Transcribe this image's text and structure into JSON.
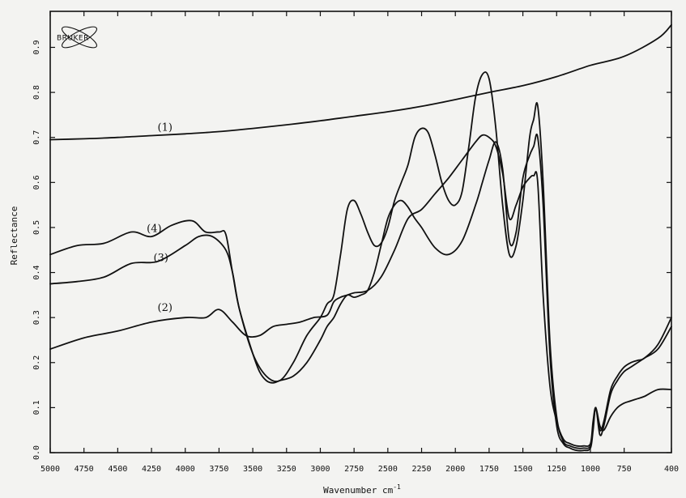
{
  "chart_data": {
    "type": "line",
    "title": "",
    "xlabel": "Wavenumber cm",
    "xlabel_superscript": "-1",
    "ylabel": "Reflectance",
    "xlim": [
      5000,
      400
    ],
    "ylim": [
      0.0,
      0.98
    ],
    "x_reversed": true,
    "grid": false,
    "logo": "BRUKER",
    "x_ticks": [
      "5000",
      "4750",
      "4500",
      "4250",
      "4000",
      "3750",
      "3500",
      "3250",
      "3000",
      "2750",
      "2500",
      "2250",
      "2000",
      "1750",
      "1500",
      "1250",
      "1000",
      "750",
      "400"
    ],
    "x_tick_values": [
      5000,
      4750,
      4500,
      4250,
      4000,
      3750,
      3500,
      3250,
      3000,
      2750,
      2500,
      2250,
      2000,
      1750,
      1500,
      1250,
      1000,
      750,
      400
    ],
    "y_ticks": [
      "0.0",
      "0.1",
      "0.2",
      "0.3",
      "0.4",
      "0.5",
      "0.6",
      "0.7",
      "0.8",
      "0.9"
    ],
    "y_tick_values": [
      0.0,
      0.1,
      0.2,
      0.3,
      0.4,
      0.5,
      0.6,
      0.7,
      0.8,
      0.9
    ],
    "series": [
      {
        "label": "(1)",
        "label_at": [
          4150,
          0.715
        ],
        "x": [
          5000,
          4750,
          4500,
          4250,
          4000,
          3750,
          3500,
          3250,
          3000,
          2750,
          2500,
          2250,
          2000,
          1750,
          1500,
          1250,
          1000,
          750,
          500,
          400
        ],
        "y": [
          0.695,
          0.697,
          0.7,
          0.704,
          0.708,
          0.713,
          0.72,
          0.728,
          0.737,
          0.747,
          0.757,
          0.769,
          0.784,
          0.8,
          0.815,
          0.835,
          0.86,
          0.88,
          0.92,
          0.95
        ]
      },
      {
        "label": "(2)",
        "label_at": [
          4150,
          0.315
        ],
        "x": [
          5000,
          4750,
          4500,
          4250,
          4000,
          3850,
          3750,
          3650,
          3550,
          3450,
          3350,
          3250,
          3150,
          3050,
          2950,
          2900,
          2850,
          2800,
          2750,
          2650,
          2550,
          2450,
          2350,
          2250,
          2150,
          2050,
          1950,
          1850,
          1800,
          1750,
          1700,
          1650,
          1600,
          1550,
          1500,
          1450,
          1420,
          1390,
          1350,
          1300,
          1250,
          1200,
          1150,
          1100,
          1050,
          1000,
          980,
          960,
          930,
          900,
          850,
          800,
          750,
          700,
          650,
          600,
          500,
          400
        ],
        "y": [
          0.23,
          0.255,
          0.27,
          0.29,
          0.3,
          0.3,
          0.318,
          0.29,
          0.26,
          0.26,
          0.28,
          0.285,
          0.29,
          0.3,
          0.305,
          0.335,
          0.345,
          0.35,
          0.355,
          0.36,
          0.39,
          0.45,
          0.52,
          0.54,
          0.575,
          0.61,
          0.65,
          0.69,
          0.705,
          0.7,
          0.68,
          0.62,
          0.52,
          0.55,
          0.59,
          0.61,
          0.615,
          0.6,
          0.35,
          0.15,
          0.07,
          0.03,
          0.02,
          0.015,
          0.015,
          0.02,
          0.07,
          0.1,
          0.06,
          0.05,
          0.08,
          0.1,
          0.11,
          0.115,
          0.12,
          0.125,
          0.14,
          0.14
        ]
      },
      {
        "label": "(3)",
        "label_at": [
          4180,
          0.425
        ],
        "x": [
          5000,
          4800,
          4600,
          4400,
          4200,
          4000,
          3900,
          3800,
          3700,
          3650,
          3600,
          3500,
          3450,
          3400,
          3350,
          3300,
          3200,
          3100,
          3000,
          2950,
          2900,
          2850,
          2800,
          2750,
          2700,
          2650,
          2600,
          2550,
          2500,
          2450,
          2400,
          2350,
          2300,
          2250,
          2150,
          2050,
          1950,
          1850,
          1800,
          1750,
          1700,
          1650,
          1600,
          1550,
          1500,
          1450,
          1420,
          1390,
          1350,
          1300,
          1250,
          1200,
          1150,
          1100,
          1050,
          1000,
          980,
          960,
          930,
          900,
          850,
          800,
          750,
          700,
          650,
          600,
          500,
          400
        ],
        "y": [
          0.375,
          0.38,
          0.39,
          0.42,
          0.425,
          0.46,
          0.48,
          0.48,
          0.45,
          0.4,
          0.32,
          0.22,
          0.18,
          0.16,
          0.155,
          0.16,
          0.17,
          0.2,
          0.25,
          0.28,
          0.3,
          0.33,
          0.35,
          0.345,
          0.35,
          0.36,
          0.4,
          0.46,
          0.52,
          0.55,
          0.56,
          0.545,
          0.52,
          0.5,
          0.455,
          0.44,
          0.47,
          0.55,
          0.6,
          0.65,
          0.69,
          0.63,
          0.47,
          0.49,
          0.61,
          0.66,
          0.68,
          0.7,
          0.55,
          0.22,
          0.06,
          0.02,
          0.01,
          0.005,
          0.005,
          0.01,
          0.05,
          0.1,
          0.04,
          0.06,
          0.13,
          0.16,
          0.18,
          0.19,
          0.2,
          0.21,
          0.23,
          0.28
        ]
      },
      {
        "label": "(4)",
        "label_at": [
          4230,
          0.49
        ],
        "x": [
          5000,
          4800,
          4600,
          4400,
          4250,
          4100,
          3950,
          3850,
          3750,
          3700,
          3650,
          3600,
          3500,
          3400,
          3300,
          3200,
          3100,
          3000,
          2950,
          2900,
          2850,
          2800,
          2750,
          2700,
          2650,
          2600,
          2550,
          2500,
          2450,
          2400,
          2350,
          2300,
          2250,
          2200,
          2150,
          2100,
          2050,
          2000,
          1950,
          1900,
          1850,
          1800,
          1750,
          1700,
          1650,
          1600,
          1550,
          1500,
          1450,
          1420,
          1390,
          1350,
          1300,
          1250,
          1200,
          1150,
          1100,
          1050,
          1000,
          980,
          960,
          930,
          900,
          850,
          800,
          750,
          700,
          650,
          600,
          500,
          400
        ],
        "y": [
          0.44,
          0.46,
          0.465,
          0.49,
          0.48,
          0.505,
          0.515,
          0.49,
          0.49,
          0.485,
          0.4,
          0.32,
          0.22,
          0.17,
          0.16,
          0.2,
          0.26,
          0.3,
          0.33,
          0.35,
          0.44,
          0.54,
          0.56,
          0.53,
          0.49,
          0.46,
          0.465,
          0.5,
          0.56,
          0.6,
          0.64,
          0.7,
          0.72,
          0.71,
          0.66,
          0.6,
          0.56,
          0.55,
          0.58,
          0.68,
          0.79,
          0.84,
          0.83,
          0.72,
          0.55,
          0.44,
          0.46,
          0.56,
          0.7,
          0.74,
          0.77,
          0.6,
          0.25,
          0.08,
          0.025,
          0.015,
          0.01,
          0.01,
          0.015,
          0.06,
          0.1,
          0.05,
          0.07,
          0.14,
          0.17,
          0.19,
          0.2,
          0.205,
          0.21,
          0.24,
          0.3
        ]
      }
    ]
  }
}
